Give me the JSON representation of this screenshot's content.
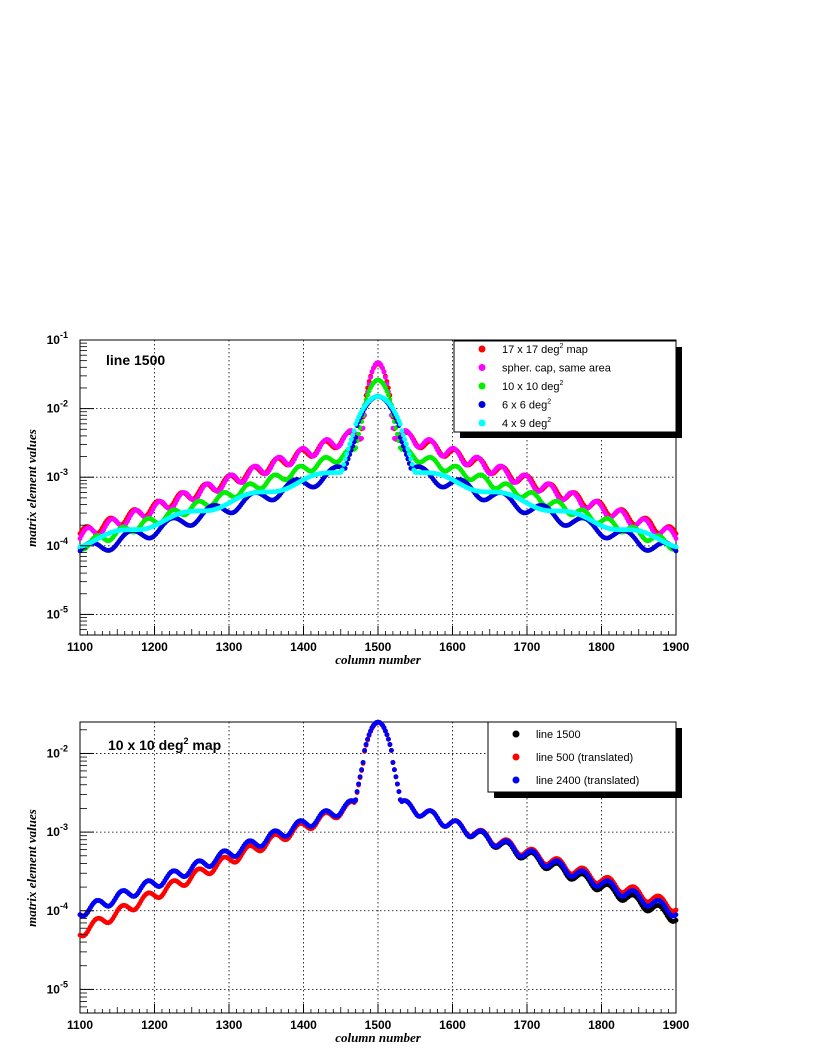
{
  "chart_data": [
    {
      "type": "scatter",
      "annotation": "line 1500",
      "xlabel": "column number",
      "ylabel": "matrix element values",
      "xlim": [
        1100,
        1900
      ],
      "ylim_log10": [
        -5.3,
        -1
      ],
      "x_ticks": [
        "1100",
        "1200",
        "1300",
        "1400",
        "1500",
        "1600",
        "1700",
        "1800",
        "1900"
      ],
      "y_ticks": [
        {
          "value": -5,
          "base": "10",
          "exp": "-5"
        },
        {
          "value": -4,
          "base": "10",
          "exp": "-4"
        },
        {
          "value": -3,
          "base": "10",
          "exp": "-3"
        },
        {
          "value": -2,
          "base": "10",
          "exp": "-2"
        },
        {
          "value": -1,
          "base": "10",
          "exp": "-1"
        }
      ],
      "legend_position": "top-right",
      "series": [
        {
          "name": "17 x 17 deg² map",
          "legend_parts": [
            "17 x 17 deg",
            "2",
            " map"
          ],
          "color": "#ff0000",
          "profile": {
            "peak": 0.045,
            "core_width": 11,
            "slope": 0.0085,
            "floor": 7e-06,
            "floor_slope": 0.0019,
            "ripple_amp": 0.18,
            "ripple_period": 32,
            "ripple_phase": 0
          }
        },
        {
          "name": "spher. cap, same area",
          "legend_parts": [
            "spher. cap, same area",
            "",
            ""
          ],
          "color": "#ff00ff",
          "profile": {
            "peak": 0.047,
            "core_width": 10,
            "slope": 0.0088,
            "floor": 6.5e-06,
            "floor_slope": 0.0019,
            "ripple_amp": 0.2,
            "ripple_period": 32,
            "ripple_phase": 0.4
          }
        },
        {
          "name": "10 x 10 deg²",
          "legend_parts": [
            "10 x 10 deg",
            "2",
            ""
          ],
          "color": "#00ee00",
          "profile": {
            "peak": 0.026,
            "core_width": 14,
            "slope": 0.0082,
            "floor": 1.3e-05,
            "floor_slope": 0.0015,
            "ripple_amp": 0.15,
            "ripple_period": 34,
            "ripple_phase": 0.9
          }
        },
        {
          "name": "6 x 6 deg²",
          "legend_parts": [
            " 6 x 6 deg",
            "2",
            ""
          ],
          "color": "#0000dd",
          "profile": {
            "peak": 0.015,
            "core_width": 20,
            "slope": 0.0075,
            "floor": 2.5e-05,
            "floor_slope": 0.0012,
            "ripple_amp": 0.22,
            "ripple_period": 55,
            "ripple_phase": 1.3
          }
        },
        {
          "name": "4 x 9 deg²",
          "legend_parts": [
            " 4 x 9 deg",
            "2",
            ""
          ],
          "color": "#00ffff",
          "profile": {
            "peak": 0.015,
            "core_width": 22,
            "slope": 0.0068,
            "floor": 3e-05,
            "floor_slope": 0.0011,
            "ripple_amp": 0.1,
            "ripple_period": 90,
            "ripple_phase": 2.0
          }
        }
      ]
    },
    {
      "type": "scatter",
      "annotation_parts": [
        "10 x 10 deg",
        "2",
        " map"
      ],
      "xlabel": "column number",
      "ylabel": "matrix element values",
      "xlim": [
        1100,
        1900
      ],
      "ylim_log10": [
        -5.3,
        -1.6
      ],
      "x_ticks": [
        "1100",
        "1200",
        "1300",
        "1400",
        "1500",
        "1600",
        "1700",
        "1800",
        "1900"
      ],
      "y_ticks": [
        {
          "value": -5,
          "base": "10",
          "exp": "-5"
        },
        {
          "value": -4,
          "base": "10",
          "exp": "-4"
        },
        {
          "value": -3,
          "base": "10",
          "exp": "-3"
        },
        {
          "value": -2,
          "base": "10",
          "exp": "-2"
        }
      ],
      "legend_position": "top-right",
      "series": [
        {
          "name": "line 1500",
          "legend_parts": [
            "line 1500",
            "",
            ""
          ],
          "color": "#000000",
          "profile": {
            "peak": 0.025,
            "core_width": 14,
            "slope": 0.0082,
            "floor": 1.3e-05,
            "floor_slope": 0.0015,
            "ripple_amp": 0.15,
            "ripple_period": 34,
            "ripple_phase": 0.9,
            "right_scale": 0.85
          }
        },
        {
          "name": "line 500  (translated)",
          "legend_parts": [
            "line 500  (translated)",
            "",
            ""
          ],
          "color": "#ff0000",
          "profile": {
            "peak": 0.025,
            "core_width": 14,
            "slope": 0.0082,
            "floor": 1.3e-05,
            "floor_slope": 0.0015,
            "ripple_amp": 0.15,
            "ripple_period": 34,
            "ripple_phase": 0.9,
            "left_scale": 0.55,
            "right_scale": 1.15
          }
        },
        {
          "name": "line 2400 (translated)",
          "legend_parts": [
            "line 2400 (translated)",
            "",
            ""
          ],
          "color": "#0000ff",
          "profile": {
            "peak": 0.025,
            "core_width": 14,
            "slope": 0.0082,
            "floor": 1.3e-05,
            "floor_slope": 0.0015,
            "ripple_amp": 0.15,
            "ripple_period": 34,
            "ripple_phase": 0.9,
            "right_scale": 0.0
          }
        }
      ]
    }
  ]
}
